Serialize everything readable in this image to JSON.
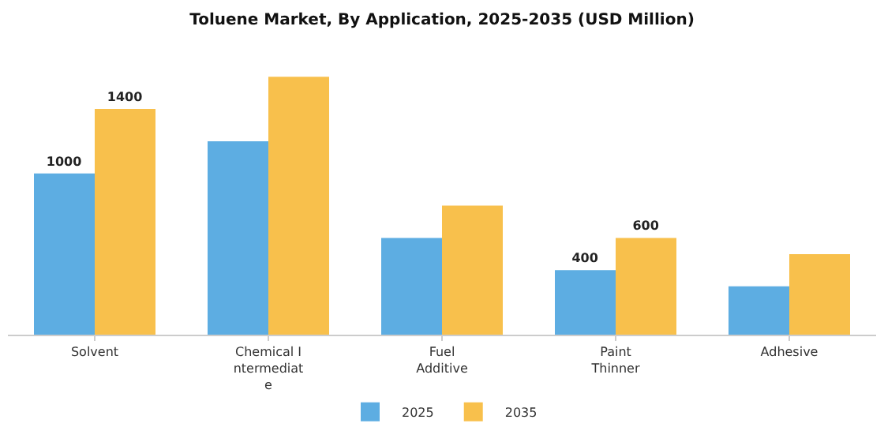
{
  "chart_data": {
    "type": "bar",
    "title": "Toluene Market, By Application, 2025-2035 (USD Million)",
    "categories": [
      "Solvent",
      "Chemical Intermediate",
      "Fuel Additive",
      "Paint Thinner",
      "Adhesive"
    ],
    "series": [
      {
        "name": "2025",
        "color": "#5dade2",
        "values": [
          1000,
          1200,
          600,
          400,
          300
        ],
        "value_labels": [
          "1000",
          null,
          null,
          "400",
          null
        ]
      },
      {
        "name": "2035",
        "color": "#f8c04c",
        "values": [
          1400,
          1600,
          800,
          600,
          500
        ],
        "value_labels": [
          "1400",
          null,
          null,
          "600",
          null
        ]
      }
    ],
    "legend": "bottom",
    "tick_labels": "x"
  }
}
